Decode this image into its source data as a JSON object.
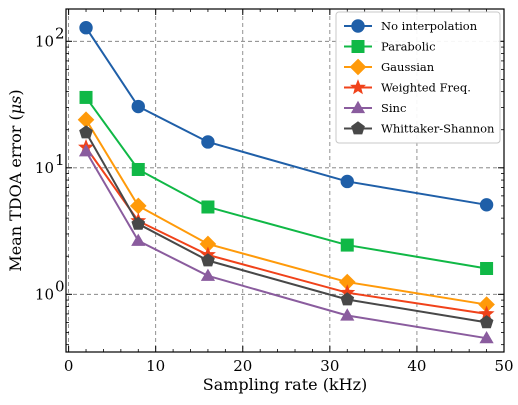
{
  "chart_data": {
    "type": "line",
    "xlabel": "Sampling rate (kHz)",
    "ylabel": "Mean TDOA error (",
    "ylabel_unit": "μs",
    "ylabel_close": ")",
    "x_scale": "linear",
    "y_scale": "log",
    "xlim": [
      -0.3,
      50
    ],
    "ylim": [
      0.35,
      180
    ],
    "x_ticks": [
      0,
      10,
      20,
      30,
      40,
      50
    ],
    "x_tick_labels": [
      "0",
      "10",
      "20",
      "30",
      "40",
      "50"
    ],
    "y_ticks": [
      1,
      10,
      100
    ],
    "y_tick_labels": [
      "10",
      "10",
      "10"
    ],
    "y_tick_exponents": [
      "0",
      "1",
      "2"
    ],
    "grid": true,
    "legend_position": "top-right",
    "x": [
      2,
      8,
      16,
      32,
      48
    ],
    "series": [
      {
        "name": "No interpolation",
        "color": "#1f5fa8",
        "marker": "circle",
        "values": [
          128,
          30.5,
          16,
          7.8,
          5.1
        ]
      },
      {
        "name": "Parabolic",
        "color": "#10b846",
        "marker": "square",
        "values": [
          36,
          9.7,
          4.9,
          2.45,
          1.6
        ]
      },
      {
        "name": "Gaussian",
        "color": "#ff9a0a",
        "marker": "diamond",
        "values": [
          24,
          5.0,
          2.5,
          1.25,
          0.83
        ]
      },
      {
        "name": "Weighted Freq.",
        "color": "#f0421a",
        "marker": "star",
        "values": [
          14.5,
          3.8,
          2.05,
          1.03,
          0.7
        ]
      },
      {
        "name": "Sinc",
        "color": "#8a5c9e",
        "marker": "triangle",
        "values": [
          13.5,
          2.65,
          1.4,
          0.68,
          0.45
        ]
      },
      {
        "name": "Whittaker-Shannon",
        "color": "#484848",
        "marker": "pentagon",
        "values": [
          19,
          3.6,
          1.85,
          0.91,
          0.6
        ]
      }
    ]
  }
}
